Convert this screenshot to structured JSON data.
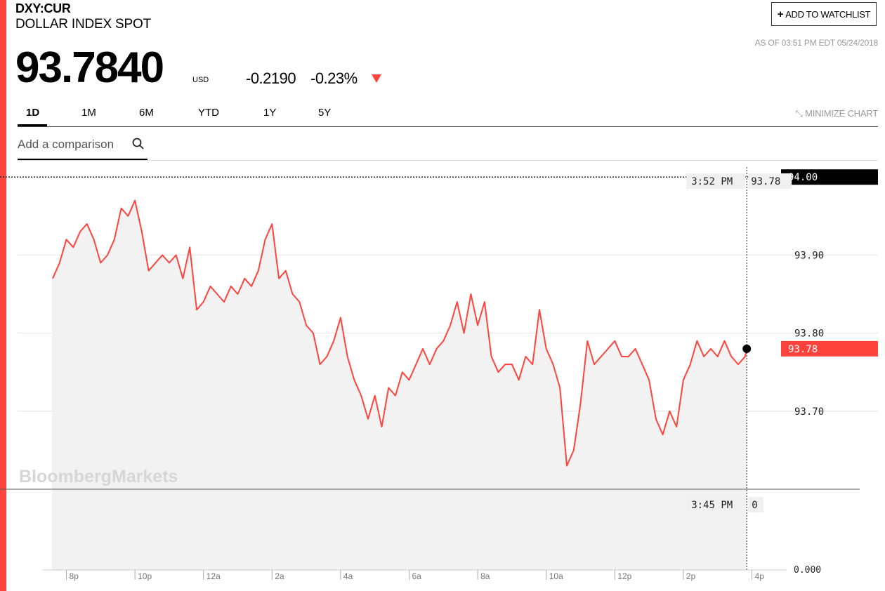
{
  "header": {
    "ticker": "DXY:CUR",
    "name": "DOLLAR INDEX SPOT",
    "watchlist_label": "ADD TO WATCHLIST",
    "as_of": "AS OF 03:51 PM EDT 05/24/2018"
  },
  "quote": {
    "price": "93.7840",
    "currency": "USD",
    "change": "-0.2190",
    "change_pct": "-0.23%",
    "direction_icon": "down-triangle-icon",
    "down_color": "#ff433d"
  },
  "tabs": [
    {
      "label": "1D",
      "active": true
    },
    {
      "label": "1M",
      "active": false
    },
    {
      "label": "6M",
      "active": false
    },
    {
      "label": "YTD",
      "active": false
    },
    {
      "label": "1Y",
      "active": false
    },
    {
      "label": "5Y",
      "active": false
    }
  ],
  "minimize_label": "MINIMIZE CHART",
  "minimize_icon": "collapse-arrows-icon",
  "search": {
    "placeholder": "Add a comparison",
    "icon": "search-icon"
  },
  "watermark": "BloombergMarkets",
  "chart_data": {
    "type": "line",
    "line_color": "#ff433d",
    "y_ticks": [
      "93.90",
      "93.80",
      "93.70"
    ],
    "ylim": [
      93.6,
      94.02
    ],
    "reference_line": {
      "value": 94.0,
      "label": "94.00"
    },
    "last_value_label": "93.78",
    "volume_axis_label": "0.000",
    "x_ticks": [
      "8p",
      "10p",
      "12a",
      "2a",
      "4a",
      "6a",
      "8a",
      "10a",
      "12p",
      "2p",
      "4p"
    ],
    "xlim_hours": [
      19.0,
      40.2
    ],
    "crosshair": {
      "time": "3:52 PM",
      "value": "93.78",
      "volume_time": "3:45 PM",
      "volume_value": "0"
    },
    "series": [
      {
        "x": [
          19.6,
          19.8,
          20.0,
          20.2,
          20.4,
          20.6,
          20.8,
          21.0,
          21.2,
          21.4,
          21.6,
          21.8,
          22.0,
          22.2,
          22.4,
          22.6,
          22.8,
          23.0,
          23.2,
          23.4,
          23.6,
          23.8,
          24.0,
          24.2,
          24.4,
          24.6,
          24.8,
          25.0,
          25.2,
          25.4,
          25.6,
          25.8,
          26.0,
          26.2,
          26.4,
          26.6,
          26.8,
          27.0,
          27.2,
          27.4,
          27.6,
          27.8,
          28.0,
          28.2,
          28.4,
          28.6,
          28.8,
          29.0,
          29.2,
          29.4,
          29.6,
          29.8,
          30.0,
          30.2,
          30.4,
          30.6,
          30.8,
          31.0,
          31.2,
          31.4,
          31.6,
          31.8,
          32.0,
          32.2,
          32.4,
          32.6,
          32.8,
          33.0,
          33.2,
          33.4,
          33.6,
          33.8,
          34.0,
          34.2,
          34.4,
          34.6,
          34.8,
          35.0,
          35.2,
          35.4,
          35.6,
          35.8,
          36.0,
          36.2,
          36.4,
          36.6,
          36.8,
          37.0,
          37.2,
          37.4,
          37.6,
          37.8,
          38.0,
          38.2,
          38.4,
          38.6,
          38.8,
          39.0,
          39.2,
          39.4,
          39.6,
          39.8,
          39.85
        ],
        "y": [
          93.87,
          93.89,
          93.92,
          93.91,
          93.93,
          93.94,
          93.92,
          93.89,
          93.9,
          93.92,
          93.96,
          93.95,
          93.97,
          93.93,
          93.88,
          93.89,
          93.9,
          93.89,
          93.9,
          93.87,
          93.91,
          93.83,
          93.84,
          93.86,
          93.85,
          93.84,
          93.86,
          93.85,
          93.87,
          93.86,
          93.88,
          93.92,
          93.94,
          93.87,
          93.88,
          93.85,
          93.84,
          93.81,
          93.8,
          93.76,
          93.77,
          93.79,
          93.82,
          93.77,
          93.74,
          93.72,
          93.69,
          93.72,
          93.68,
          93.73,
          93.72,
          93.75,
          93.74,
          93.76,
          93.78,
          93.76,
          93.78,
          93.79,
          93.81,
          93.84,
          93.8,
          93.85,
          93.81,
          93.84,
          93.77,
          93.75,
          93.76,
          93.76,
          93.74,
          93.77,
          93.76,
          93.83,
          93.78,
          93.76,
          93.73,
          93.63,
          93.65,
          93.71,
          93.79,
          93.76,
          93.77,
          93.78,
          93.79,
          93.77,
          93.77,
          93.78,
          93.76,
          93.74,
          93.69,
          93.67,
          93.7,
          93.68,
          93.74,
          93.76,
          93.79,
          93.77,
          93.78,
          93.77,
          93.79,
          93.77,
          93.76,
          93.77,
          93.78
        ]
      }
    ]
  }
}
